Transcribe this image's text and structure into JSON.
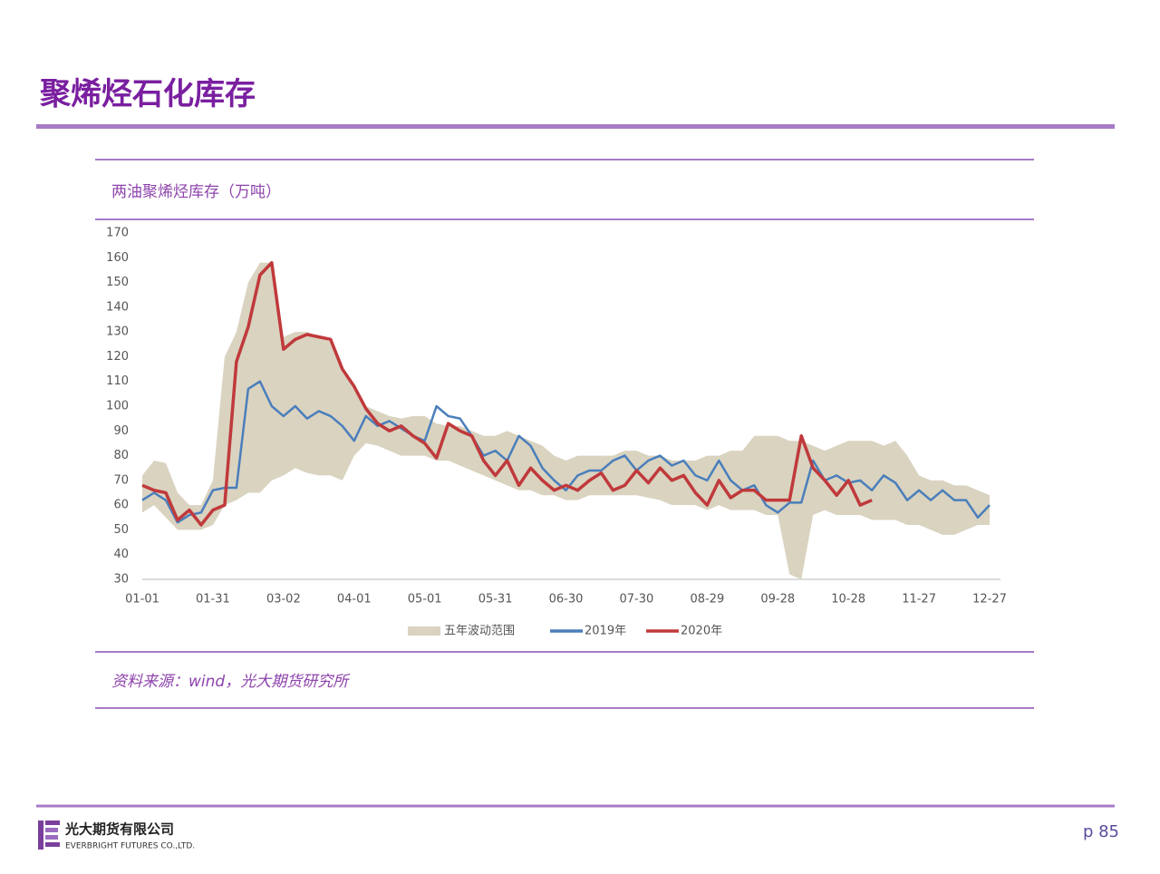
{
  "header": {
    "title": "聚烯烃石化库存"
  },
  "chart_data": {
    "type": "line",
    "title": "两油聚烯烃库存（万吨）",
    "x": [
      "01-01",
      "01-06",
      "01-11",
      "01-16",
      "01-21",
      "01-26",
      "01-31",
      "02-05",
      "02-10",
      "02-15",
      "02-20",
      "02-25",
      "03-02",
      "03-07",
      "03-12",
      "03-17",
      "03-22",
      "03-27",
      "04-01",
      "04-06",
      "04-11",
      "04-16",
      "04-21",
      "04-26",
      "05-01",
      "05-06",
      "05-11",
      "05-16",
      "05-21",
      "05-26",
      "05-31",
      "06-05",
      "06-10",
      "06-15",
      "06-20",
      "06-25",
      "06-30",
      "07-05",
      "07-10",
      "07-15",
      "07-20",
      "07-25",
      "07-30",
      "08-04",
      "08-09",
      "08-14",
      "08-19",
      "08-24",
      "08-29",
      "09-03",
      "09-08",
      "09-13",
      "09-18",
      "09-23",
      "09-28",
      "10-03",
      "10-08",
      "10-13",
      "10-18",
      "10-23",
      "10-28",
      "11-02",
      "11-07",
      "11-12",
      "11-17",
      "11-22",
      "11-27",
      "12-02",
      "12-07",
      "12-12",
      "12-17",
      "12-22",
      "12-27"
    ],
    "xticks": [
      "01-01",
      "01-31",
      "03-02",
      "04-01",
      "05-01",
      "05-31",
      "06-30",
      "07-30",
      "08-29",
      "09-28",
      "10-28",
      "11-27",
      "12-27"
    ],
    "ylim": [
      30,
      170
    ],
    "yticks": [
      30,
      40,
      50,
      60,
      70,
      80,
      90,
      100,
      110,
      120,
      130,
      140,
      150,
      160,
      170
    ],
    "legend": "bottom",
    "band": {
      "name": "五年波动范围",
      "color": "#d9d3c0",
      "low": [
        57,
        60,
        55,
        50,
        50,
        50,
        52,
        60,
        62,
        65,
        65,
        70,
        72,
        75,
        73,
        72,
        72,
        70,
        80,
        85,
        84,
        82,
        80,
        80,
        80,
        78,
        78,
        76,
        74,
        72,
        70,
        68,
        66,
        66,
        64,
        64,
        62,
        62,
        64,
        64,
        64,
        64,
        64,
        63,
        62,
        60,
        60,
        60,
        58,
        60,
        58,
        58,
        58,
        56,
        56,
        32,
        30,
        56,
        58,
        56,
        56,
        56,
        54,
        54,
        54,
        52,
        52,
        50,
        48,
        48,
        50,
        52,
        52
      ],
      "high": [
        72,
        78,
        77,
        65,
        60,
        60,
        70,
        120,
        130,
        150,
        158,
        158,
        128,
        130,
        130,
        128,
        126,
        115,
        108,
        100,
        98,
        96,
        95,
        96,
        96,
        93,
        92,
        92,
        90,
        88,
        88,
        90,
        88,
        86,
        84,
        80,
        78,
        80,
        80,
        80,
        80,
        82,
        82,
        80,
        80,
        78,
        78,
        78,
        80,
        80,
        82,
        82,
        88,
        88,
        88,
        86,
        86,
        84,
        82,
        84,
        86,
        86,
        86,
        84,
        86,
        80,
        72,
        70,
        70,
        68,
        68,
        66,
        64
      ]
    },
    "series": [
      {
        "name": "2019年",
        "color": "#4a7ebb",
        "values": [
          62,
          65,
          62,
          53,
          56,
          57,
          66,
          67,
          67,
          107,
          110,
          100,
          96,
          100,
          95,
          98,
          96,
          92,
          86,
          96,
          92,
          94,
          91,
          88,
          86,
          100,
          96,
          95,
          88,
          80,
          82,
          78,
          88,
          84,
          75,
          70,
          66,
          72,
          74,
          74,
          78,
          80,
          74,
          78,
          80,
          76,
          78,
          72,
          70,
          78,
          70,
          66,
          68,
          60,
          57,
          61,
          61,
          78,
          70,
          72,
          69,
          70,
          66,
          72,
          69,
          62,
          66,
          62,
          66,
          62,
          62,
          55,
          60
        ]
      },
      {
        "name": "2020年",
        "color": "#c0393b",
        "values": [
          68,
          66,
          65,
          54,
          58,
          52,
          58,
          60,
          118,
          132,
          153,
          158,
          123,
          127,
          129,
          128,
          127,
          115,
          108,
          99,
          93,
          90,
          92,
          88,
          85,
          79,
          93,
          90,
          88,
          78,
          72,
          78,
          68,
          75,
          70,
          66,
          68,
          66,
          70,
          73,
          66,
          68,
          74,
          69,
          75,
          70,
          72,
          65,
          60,
          70,
          63,
          66,
          66,
          62,
          62,
          62,
          88,
          75,
          70,
          64,
          70,
          60,
          62,
          null,
          null,
          null,
          null,
          null,
          null,
          null,
          null,
          null,
          null
        ]
      }
    ]
  },
  "source": "资料来源：wind，光大期货研究所",
  "footer": {
    "company_cn": "光大期货有限公司",
    "company_en": "EVERBRIGHT FUTURES CO.,LTD.",
    "page": "p 85"
  }
}
